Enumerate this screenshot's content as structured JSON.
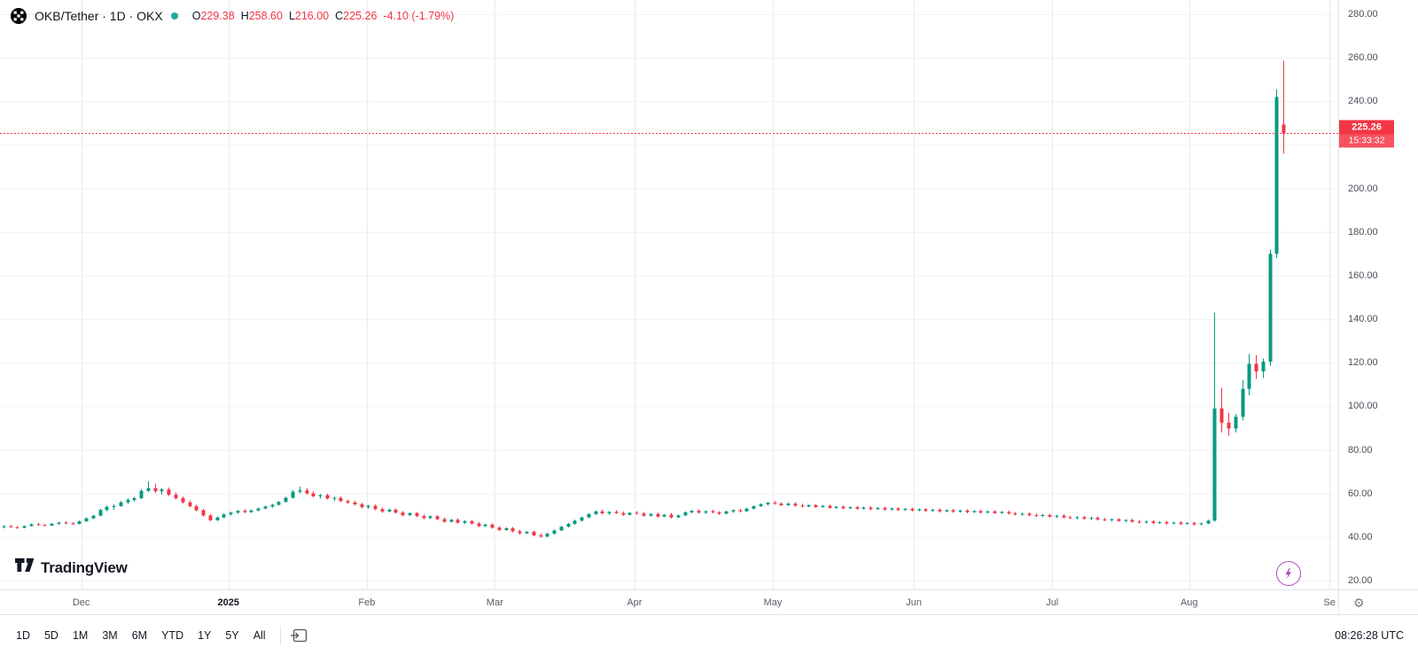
{
  "header": {
    "symbol": "OKB/Tether · 1D · OKX",
    "ohlc": {
      "o_label": "O",
      "o": "229.38",
      "h_label": "H",
      "h": "258.60",
      "l_label": "L",
      "l": "216.00",
      "c_label": "C",
      "c": "225.26",
      "change": "-4.10 (-1.79%)"
    }
  },
  "price_scale": {
    "label_price": "225.26",
    "countdown": "15:33:32"
  },
  "watermark": {
    "brand": "TradingView"
  },
  "toolbar": {
    "ranges": [
      "1D",
      "5D",
      "1M",
      "3M",
      "6M",
      "YTD",
      "1Y",
      "5Y",
      "All"
    ],
    "clock": "08:26:28 UTC"
  },
  "icons": {
    "symbol_logo": "okb-logo-icon",
    "series_marker": "series-status-dot",
    "go_to_date": "go-to-date-icon",
    "flash": "lightning-icon",
    "axis_settings": "gear-icon",
    "brand_logo": "tradingview-logo-icon"
  },
  "colors": {
    "up": "#089981",
    "down": "#F23645",
    "accent_red": "#F23645",
    "countdown_red": "#F7525F",
    "grid_h": "#F0F2F5",
    "grid_v": "#E9EBEE",
    "axis_text": "#4A4E59",
    "flash_purple": "#AB47BC"
  },
  "chart_data": {
    "type": "candlestick",
    "title": "OKB/Tether 1D OKX",
    "last_price": 225.26,
    "y_axis": {
      "min": 20,
      "max": 280,
      "ticks": [
        280,
        260,
        240,
        220,
        200,
        180,
        160,
        140,
        120,
        100,
        80,
        60,
        40,
        20
      ],
      "format": "2dp"
    },
    "x_axis": {
      "months": [
        {
          "label": "Dec",
          "index": 11.3
        },
        {
          "label": "2025",
          "index": 32.7,
          "emphasis": true
        },
        {
          "label": "Feb",
          "index": 52.8
        },
        {
          "label": "Mar",
          "index": 71.4
        },
        {
          "label": "Apr",
          "index": 91.7
        },
        {
          "label": "May",
          "index": 111.8
        },
        {
          "label": "Jun",
          "index": 132.3
        },
        {
          "label": "Jul",
          "index": 152.4
        },
        {
          "label": "Aug",
          "index": 172.3
        },
        {
          "label": "Se",
          "index": 192.7
        }
      ]
    },
    "candles": [
      [
        44.6,
        45.4,
        44.0,
        44.9
      ],
      [
        44.9,
        45.6,
        44.3,
        44.5
      ],
      [
        44.5,
        45.0,
        43.8,
        44.2
      ],
      [
        44.2,
        45.3,
        44.0,
        45.0
      ],
      [
        45.0,
        46.2,
        44.8,
        45.8
      ],
      [
        45.8,
        46.5,
        45.2,
        45.5
      ],
      [
        45.5,
        46.0,
        44.9,
        45.2
      ],
      [
        45.2,
        46.4,
        45.0,
        46.1
      ],
      [
        46.1,
        47.0,
        45.6,
        46.6
      ],
      [
        46.6,
        47.2,
        45.9,
        46.2
      ],
      [
        46.2,
        46.9,
        45.7,
        46.0
      ],
      [
        46.0,
        47.5,
        45.8,
        47.2
      ],
      [
        47.2,
        49.0,
        46.9,
        48.6
      ],
      [
        48.6,
        50.2,
        48.2,
        49.8
      ],
      [
        49.8,
        53.0,
        49.5,
        52.4
      ],
      [
        52.4,
        54.5,
        51.8,
        53.8
      ],
      [
        53.8,
        55.0,
        52.6,
        54.2
      ],
      [
        54.2,
        56.5,
        53.8,
        55.9
      ],
      [
        55.9,
        57.8,
        55.2,
        57.0
      ],
      [
        57.0,
        58.5,
        56.2,
        57.8
      ],
      [
        57.8,
        62.0,
        57.4,
        61.2
      ],
      [
        61.2,
        65.5,
        60.6,
        62.4
      ],
      [
        62.4,
        64.5,
        60.2,
        61.0
      ],
      [
        61.0,
        62.5,
        59.5,
        61.8
      ],
      [
        61.8,
        62.6,
        58.8,
        59.4
      ],
      [
        59.4,
        60.5,
        57.2,
        57.8
      ],
      [
        57.8,
        58.6,
        55.4,
        55.9
      ],
      [
        55.9,
        56.8,
        53.6,
        54.1
      ],
      [
        54.1,
        54.9,
        51.8,
        52.3
      ],
      [
        52.3,
        53.0,
        49.4,
        49.9
      ],
      [
        49.9,
        50.6,
        47.2,
        47.7
      ],
      [
        47.7,
        49.4,
        47.3,
        49.0
      ],
      [
        49.0,
        50.8,
        48.6,
        50.4
      ],
      [
        50.4,
        51.6,
        49.8,
        51.2
      ],
      [
        51.2,
        52.4,
        50.6,
        52.0
      ],
      [
        52.0,
        52.8,
        50.9,
        51.4
      ],
      [
        51.4,
        52.6,
        51.0,
        52.2
      ],
      [
        52.2,
        53.5,
        51.8,
        53.1
      ],
      [
        53.1,
        54.4,
        52.7,
        54.0
      ],
      [
        54.0,
        55.2,
        53.4,
        54.8
      ],
      [
        54.8,
        56.5,
        54.4,
        56.1
      ],
      [
        56.1,
        58.5,
        55.8,
        58.0
      ],
      [
        58.0,
        61.5,
        57.6,
        60.8
      ],
      [
        60.8,
        63.2,
        60.0,
        61.4
      ],
      [
        61.4,
        62.5,
        59.4,
        60.0
      ],
      [
        60.0,
        61.0,
        58.2,
        58.7
      ],
      [
        58.7,
        59.8,
        57.6,
        59.2
      ],
      [
        59.2,
        60.0,
        57.2,
        57.7
      ],
      [
        57.7,
        58.5,
        56.4,
        57.9
      ],
      [
        57.9,
        58.6,
        56.0,
        56.5
      ],
      [
        56.5,
        57.2,
        55.2,
        55.8
      ],
      [
        55.8,
        56.6,
        54.4,
        55.0
      ],
      [
        55.0,
        55.7,
        53.1,
        53.7
      ],
      [
        53.7,
        54.8,
        52.9,
        54.3
      ],
      [
        54.3,
        54.9,
        52.3,
        52.8
      ],
      [
        52.8,
        53.5,
        51.1,
        51.7
      ],
      [
        51.7,
        52.9,
        51.3,
        52.5
      ],
      [
        52.5,
        53.1,
        50.7,
        51.2
      ],
      [
        51.2,
        51.9,
        49.5,
        50.0
      ],
      [
        50.0,
        51.3,
        49.7,
        50.9
      ],
      [
        50.9,
        51.5,
        49.1,
        49.6
      ],
      [
        49.6,
        50.4,
        48.1,
        48.7
      ],
      [
        48.7,
        49.9,
        48.3,
        49.5
      ],
      [
        49.5,
        50.1,
        47.7,
        48.2
      ],
      [
        48.2,
        48.9,
        46.5,
        47.0
      ],
      [
        47.0,
        48.3,
        46.7,
        47.9
      ],
      [
        47.9,
        48.5,
        46.1,
        46.6
      ],
      [
        46.6,
        47.7,
        45.9,
        47.3
      ],
      [
        47.3,
        47.9,
        45.7,
        46.2
      ],
      [
        46.2,
        46.8,
        44.5,
        45.0
      ],
      [
        45.0,
        46.1,
        44.7,
        45.7
      ],
      [
        45.7,
        46.3,
        43.8,
        44.3
      ],
      [
        44.3,
        44.9,
        42.7,
        43.2
      ],
      [
        43.2,
        44.4,
        42.9,
        44.0
      ],
      [
        44.0,
        44.6,
        42.1,
        42.6
      ],
      [
        42.6,
        43.3,
        41.1,
        41.7
      ],
      [
        41.7,
        42.8,
        41.3,
        42.4
      ],
      [
        42.4,
        42.9,
        40.3,
        40.8
      ],
      [
        40.8,
        41.7,
        39.7,
        40.2
      ],
      [
        40.2,
        41.9,
        39.9,
        41.5
      ],
      [
        41.5,
        43.4,
        41.1,
        43.0
      ],
      [
        43.0,
        45.1,
        42.7,
        44.7
      ],
      [
        44.7,
        46.4,
        44.3,
        46.0
      ],
      [
        46.0,
        47.9,
        45.7,
        47.5
      ],
      [
        47.5,
        49.4,
        47.1,
        49.0
      ],
      [
        49.0,
        50.9,
        48.7,
        50.5
      ],
      [
        50.5,
        52.1,
        50.0,
        51.7
      ],
      [
        51.7,
        52.5,
        50.3,
        50.9
      ],
      [
        50.9,
        51.9,
        50.1,
        51.5
      ],
      [
        51.5,
        52.3,
        50.5,
        51.0
      ],
      [
        51.0,
        51.7,
        49.7,
        50.2
      ],
      [
        50.2,
        51.4,
        49.9,
        51.1
      ],
      [
        51.1,
        51.9,
        50.3,
        50.8
      ],
      [
        50.8,
        51.5,
        49.3,
        49.8
      ],
      [
        49.8,
        50.9,
        49.4,
        50.6
      ],
      [
        50.6,
        51.3,
        48.9,
        49.4
      ],
      [
        49.4,
        50.5,
        49.1,
        50.2
      ],
      [
        50.2,
        51.1,
        48.5,
        49.0
      ],
      [
        49.0,
        50.3,
        48.7,
        49.9
      ],
      [
        49.9,
        51.7,
        49.6,
        51.3
      ],
      [
        51.3,
        52.4,
        50.9,
        52.0
      ],
      [
        52.0,
        52.7,
        50.7,
        51.2
      ],
      [
        51.2,
        52.1,
        50.5,
        51.8
      ],
      [
        51.8,
        52.5,
        50.8,
        51.3
      ],
      [
        51.3,
        51.9,
        50.1,
        50.7
      ],
      [
        50.7,
        52.1,
        50.4,
        51.7
      ],
      [
        51.7,
        52.7,
        51.1,
        52.3
      ],
      [
        52.3,
        52.9,
        51.3,
        51.8
      ],
      [
        51.8,
        53.4,
        51.5,
        53.0
      ],
      [
        53.0,
        54.5,
        52.7,
        54.1
      ],
      [
        54.1,
        55.4,
        53.8,
        55.0
      ],
      [
        55.0,
        56.1,
        54.4,
        55.7
      ],
      [
        55.7,
        56.5,
        54.8,
        55.3
      ],
      [
        55.3,
        55.9,
        54.1,
        54.6
      ],
      [
        54.6,
        55.7,
        54.2,
        55.3
      ],
      [
        55.3,
        55.9,
        53.9,
        54.4
      ],
      [
        54.4,
        55.3,
        53.5,
        54.0
      ],
      [
        54.0,
        54.9,
        53.7,
        54.6
      ],
      [
        54.6,
        55.1,
        53.3,
        53.8
      ],
      [
        53.8,
        54.7,
        53.4,
        54.3
      ],
      [
        54.3,
        54.9,
        52.9,
        53.4
      ],
      [
        53.4,
        54.3,
        53.0,
        53.9
      ],
      [
        53.9,
        54.5,
        52.7,
        53.2
      ],
      [
        53.2,
        54.1,
        52.8,
        53.7
      ],
      [
        53.7,
        54.3,
        52.5,
        53.0
      ],
      [
        53.0,
        53.9,
        52.6,
        53.5
      ],
      [
        53.5,
        54.1,
        52.3,
        52.8
      ],
      [
        52.8,
        53.7,
        52.4,
        53.3
      ],
      [
        53.3,
        53.9,
        52.1,
        52.6
      ],
      [
        52.6,
        53.5,
        52.2,
        53.1
      ],
      [
        53.1,
        53.7,
        51.9,
        52.4
      ],
      [
        52.4,
        53.3,
        52.0,
        52.9
      ],
      [
        52.9,
        53.5,
        51.7,
        52.2
      ],
      [
        52.2,
        53.1,
        51.8,
        52.7
      ],
      [
        52.7,
        53.3,
        51.5,
        52.0
      ],
      [
        52.0,
        52.9,
        51.6,
        52.5
      ],
      [
        52.5,
        53.1,
        51.3,
        51.8
      ],
      [
        51.8,
        52.7,
        51.4,
        52.3
      ],
      [
        52.3,
        52.9,
        51.1,
        51.6
      ],
      [
        51.6,
        52.5,
        51.2,
        52.1
      ],
      [
        52.1,
        52.7,
        50.9,
        51.4
      ],
      [
        51.4,
        52.3,
        51.0,
        51.9
      ],
      [
        51.9,
        52.5,
        50.7,
        51.2
      ],
      [
        51.2,
        52.1,
        50.8,
        51.7
      ],
      [
        51.7,
        52.3,
        50.5,
        51.0
      ],
      [
        51.0,
        51.9,
        50.6,
        51.5
      ],
      [
        51.5,
        52.1,
        50.3,
        50.8
      ],
      [
        50.8,
        51.5,
        49.9,
        50.3
      ],
      [
        50.3,
        51.1,
        49.7,
        50.7
      ],
      [
        50.7,
        51.3,
        49.5,
        50.0
      ],
      [
        50.0,
        50.8,
        49.3,
        49.7
      ],
      [
        49.7,
        50.5,
        49.1,
        50.1
      ],
      [
        50.1,
        50.7,
        48.9,
        49.4
      ],
      [
        49.4,
        50.2,
        48.7,
        49.8
      ],
      [
        49.8,
        50.4,
        48.5,
        49.0
      ],
      [
        49.0,
        49.8,
        48.3,
        48.7
      ],
      [
        48.7,
        49.5,
        48.1,
        49.1
      ],
      [
        49.1,
        49.7,
        47.9,
        48.4
      ],
      [
        48.4,
        49.2,
        47.7,
        48.8
      ],
      [
        48.8,
        49.4,
        47.5,
        48.0
      ],
      [
        48.0,
        48.8,
        47.3,
        47.7
      ],
      [
        47.7,
        48.5,
        47.1,
        48.1
      ],
      [
        48.1,
        48.7,
        46.9,
        47.4
      ],
      [
        47.4,
        48.2,
        46.7,
        47.8
      ],
      [
        47.8,
        48.4,
        46.5,
        47.0
      ],
      [
        47.0,
        47.8,
        46.3,
        46.7
      ],
      [
        46.7,
        47.5,
        46.1,
        47.1
      ],
      [
        47.1,
        47.7,
        45.9,
        46.4
      ],
      [
        46.4,
        47.2,
        46.0,
        46.8
      ],
      [
        46.8,
        47.4,
        45.7,
        46.2
      ],
      [
        46.2,
        47.0,
        45.8,
        46.6
      ],
      [
        46.6,
        47.2,
        45.5,
        46.0
      ],
      [
        46.0,
        46.8,
        45.6,
        46.4
      ],
      [
        46.4,
        47.0,
        45.3,
        45.8
      ],
      [
        45.8,
        46.6,
        45.4,
        46.2
      ],
      [
        46.2,
        47.9,
        45.9,
        47.5
      ],
      [
        47.5,
        143.0,
        47.1,
        99.0
      ],
      [
        99.0,
        108.5,
        88.0,
        92.5
      ],
      [
        92.5,
        97.0,
        86.5,
        89.8
      ],
      [
        89.8,
        96.5,
        88.0,
        95.2
      ],
      [
        95.2,
        112.0,
        93.5,
        108.0
      ],
      [
        108.0,
        124.0,
        105.0,
        119.5
      ],
      [
        119.5,
        123.5,
        112.5,
        116.0
      ],
      [
        116.0,
        122.0,
        113.0,
        120.5
      ],
      [
        120.5,
        172.0,
        118.5,
        170.0
      ],
      [
        170.0,
        245.5,
        168.0,
        242.0
      ],
      [
        229.38,
        258.6,
        216.0,
        225.26
      ]
    ]
  }
}
